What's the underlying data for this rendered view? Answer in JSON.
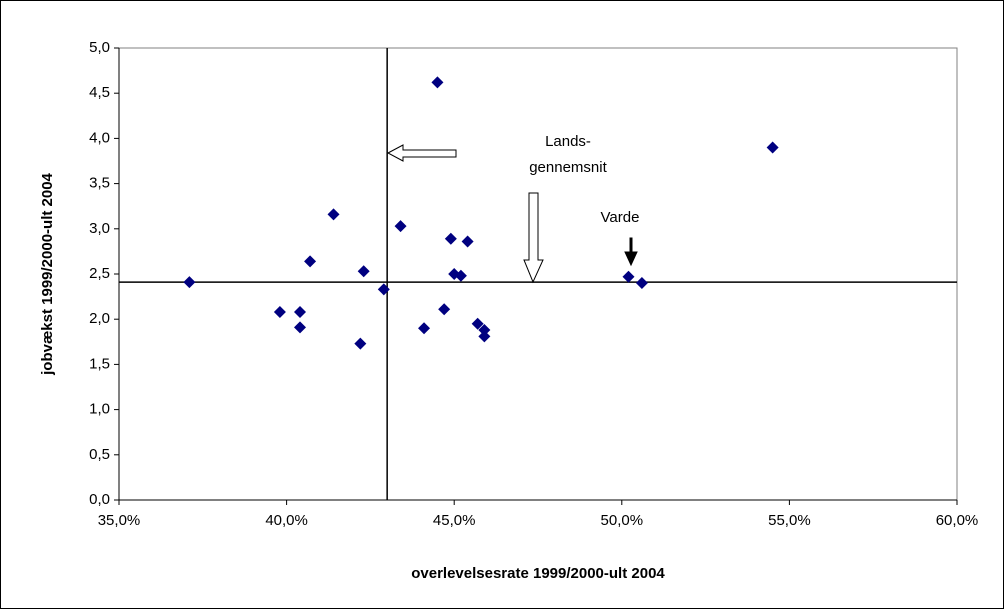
{
  "chart_data": {
    "type": "scatter",
    "xlabel": "overlevelsesrate 1999/2000-ult 2004",
    "ylabel": "jobvækst 1999/2000-ult 2004",
    "xlim": [
      35,
      60
    ],
    "xticks": [
      {
        "value": 35,
        "label": "35,0%"
      },
      {
        "value": 40,
        "label": "40,0%"
      },
      {
        "value": 45,
        "label": "45,0%"
      },
      {
        "value": 50,
        "label": "50,0%"
      },
      {
        "value": 55,
        "label": "55,0%"
      },
      {
        "value": 60,
        "label": "60,0%"
      }
    ],
    "ylim": [
      0,
      5
    ],
    "yticks": [
      {
        "value": 0,
        "label": "0,0"
      },
      {
        "value": 0.5,
        "label": "0,5"
      },
      {
        "value": 1,
        "label": "1,0"
      },
      {
        "value": 1.5,
        "label": "1,5"
      },
      {
        "value": 2,
        "label": "2,0"
      },
      {
        "value": 2.5,
        "label": "2,5"
      },
      {
        "value": 3,
        "label": "3,0"
      },
      {
        "value": 3.5,
        "label": "3,5"
      },
      {
        "value": 4,
        "label": "4,0"
      },
      {
        "value": 4.5,
        "label": "4,5"
      },
      {
        "value": 5,
        "label": "5,0"
      }
    ],
    "color": "#000080",
    "x": [
      37.1,
      39.8,
      40.4,
      40.4,
      40.7,
      41.4,
      42.2,
      42.3,
      42.9,
      43.4,
      44.5,
      44.1,
      44.7,
      44.9,
      45.0,
      45.2,
      45.4,
      45.7,
      45.9,
      45.9,
      50.2,
      50.6,
      54.5
    ],
    "values": [
      2.41,
      2.08,
      2.08,
      1.91,
      2.64,
      3.16,
      1.73,
      2.53,
      2.33,
      3.03,
      4.62,
      1.9,
      2.11,
      2.89,
      2.5,
      2.48,
      2.86,
      1.95,
      1.88,
      1.81,
      2.47,
      2.4,
      3.9
    ],
    "reference_x": 43.0,
    "reference_y": 2.41,
    "annotations": [
      "Lands-",
      "gennemsnit",
      "Varde"
    ]
  }
}
